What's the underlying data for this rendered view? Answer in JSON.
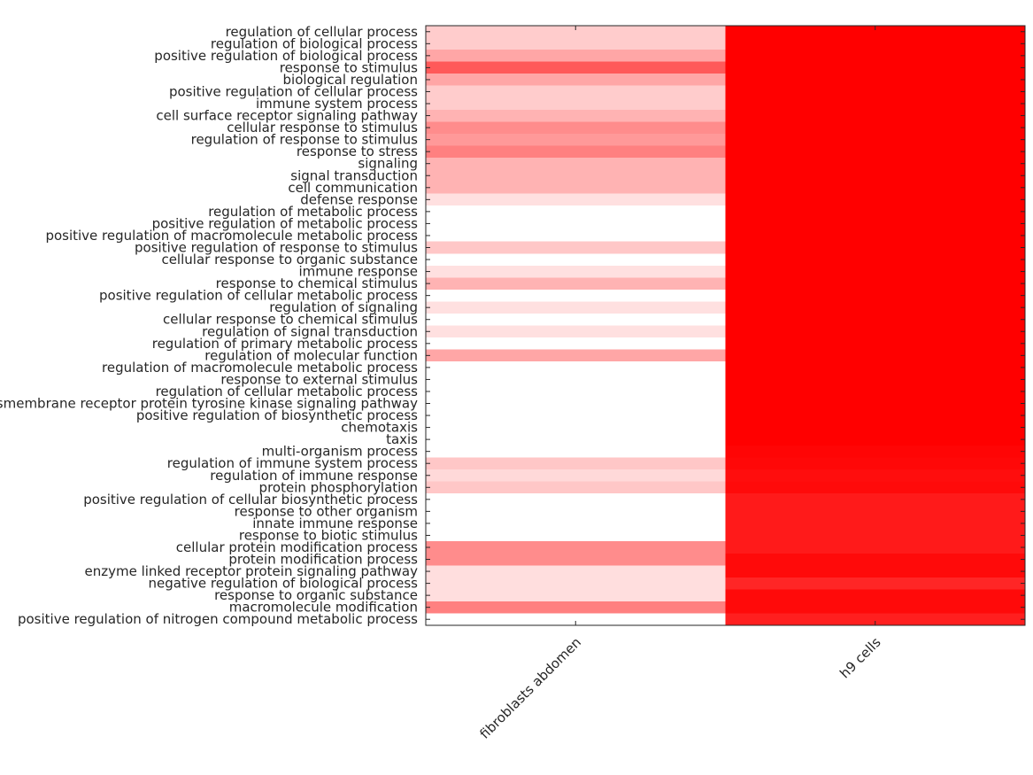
{
  "chart_data": {
    "type": "heatmap",
    "title": "",
    "xlabel": "",
    "ylabel": "",
    "grid": false,
    "legend": "none",
    "color_scale": {
      "low": "#ffffff",
      "high": "#ff0000",
      "range": [
        0,
        1
      ]
    },
    "columns": [
      "fibroblasts abdomen",
      "h9 cells"
    ],
    "rows": [
      "regulation of cellular process",
      "regulation of biological process",
      "positive regulation of biological process",
      "response to stimulus",
      "biological regulation",
      "positive regulation of cellular process",
      "immune system process",
      "cell surface receptor signaling pathway",
      "cellular response to stimulus",
      "regulation of response to stimulus",
      "response to stress",
      "signaling",
      "signal transduction",
      "cell communication",
      "defense response",
      "regulation of metabolic process",
      "positive regulation of metabolic process",
      "positive regulation of macromolecule metabolic process",
      "positive regulation of response to stimulus",
      "cellular response to organic substance",
      "immune response",
      "response to chemical stimulus",
      "positive regulation of cellular metabolic process",
      "regulation of signaling",
      "cellular response to chemical stimulus",
      "regulation of signal transduction",
      "regulation of primary metabolic process",
      "regulation of molecular function",
      "regulation of macromolecule metabolic process",
      "response to external stimulus",
      "regulation of cellular metabolic process",
      "transmembrane receptor protein tyrosine kinase signaling pathway",
      "positive regulation of biosynthetic process",
      "chemotaxis",
      "taxis",
      "multi-organism process",
      "regulation of immune system process",
      "regulation of immune response",
      "protein phosphorylation",
      "positive regulation of cellular biosynthetic process",
      "response to other organism",
      "innate immune response",
      "response to biotic stimulus",
      "cellular protein modification process",
      "protein modification process",
      "enzyme linked receptor protein signaling pathway",
      "negative regulation of biological process",
      "response to organic substance",
      "macromolecule modification",
      "positive regulation of nitrogen compound metabolic process"
    ],
    "values": [
      [
        0.2,
        1.0
      ],
      [
        0.2,
        1.0
      ],
      [
        0.35,
        1.0
      ],
      [
        0.65,
        1.0
      ],
      [
        0.35,
        1.0
      ],
      [
        0.2,
        1.0
      ],
      [
        0.2,
        1.0
      ],
      [
        0.3,
        1.0
      ],
      [
        0.45,
        1.0
      ],
      [
        0.4,
        1.0
      ],
      [
        0.5,
        1.0
      ],
      [
        0.3,
        1.0
      ],
      [
        0.3,
        1.0
      ],
      [
        0.3,
        1.0
      ],
      [
        0.12,
        1.0
      ],
      [
        0.0,
        1.0
      ],
      [
        0.0,
        1.0
      ],
      [
        0.0,
        1.0
      ],
      [
        0.22,
        1.0
      ],
      [
        0.0,
        1.0
      ],
      [
        0.12,
        1.0
      ],
      [
        0.3,
        1.0
      ],
      [
        0.0,
        1.0
      ],
      [
        0.12,
        1.0
      ],
      [
        0.0,
        1.0
      ],
      [
        0.12,
        1.0
      ],
      [
        0.0,
        1.0
      ],
      [
        0.35,
        1.0
      ],
      [
        0.0,
        1.0
      ],
      [
        0.0,
        1.0
      ],
      [
        0.0,
        1.0
      ],
      [
        0.0,
        1.0
      ],
      [
        0.0,
        1.0
      ],
      [
        0.0,
        1.0
      ],
      [
        0.0,
        1.0
      ],
      [
        0.0,
        0.98
      ],
      [
        0.22,
        0.97
      ],
      [
        0.15,
        0.95
      ],
      [
        0.22,
        0.96
      ],
      [
        0.0,
        0.9
      ],
      [
        0.0,
        0.9
      ],
      [
        0.0,
        0.9
      ],
      [
        0.0,
        0.9
      ],
      [
        0.45,
        0.9
      ],
      [
        0.45,
        0.96
      ],
      [
        0.13,
        0.96
      ],
      [
        0.13,
        0.85
      ],
      [
        0.13,
        0.96
      ],
      [
        0.5,
        0.96
      ],
      [
        0.0,
        0.88
      ]
    ]
  }
}
